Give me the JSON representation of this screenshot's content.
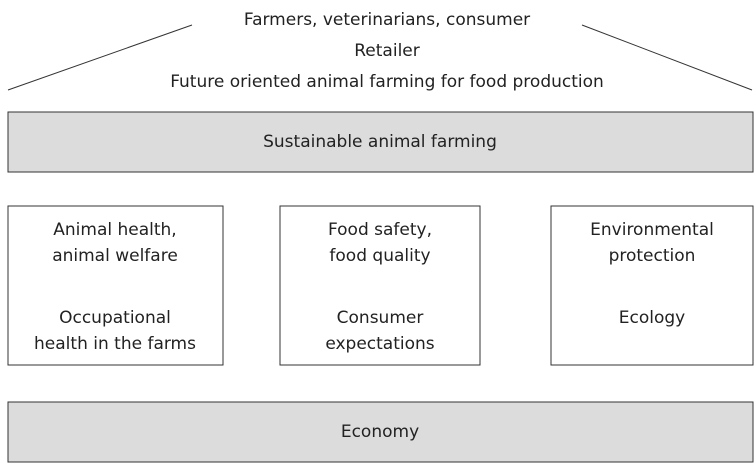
{
  "roof": {
    "lines": [
      "Farmers, veterinarians, consumer",
      "Retailer",
      "Future oriented animal farming for food production"
    ]
  },
  "beam": {
    "label": "Sustainable animal farming"
  },
  "pillars": [
    {
      "top": [
        "Animal health,",
        "animal welfare"
      ],
      "bottom": [
        "Occupational",
        "health in the farms"
      ]
    },
    {
      "top": [
        "Food safety,",
        "food quality"
      ],
      "bottom": [
        "Consumer",
        "expectations"
      ]
    },
    {
      "top": [
        "Environmental",
        "protection"
      ],
      "bottom": [
        "Ecology"
      ]
    }
  ],
  "foundation": {
    "label": "Economy"
  }
}
